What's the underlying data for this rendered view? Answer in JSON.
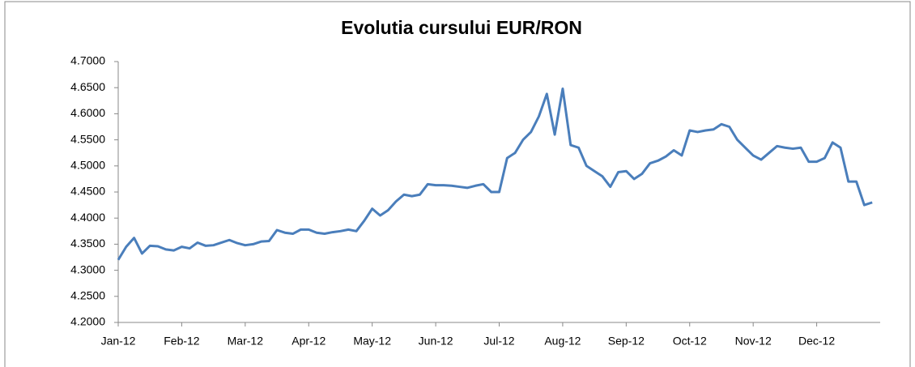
{
  "chart_data": {
    "type": "line",
    "title": "Evolutia cursului EUR/RON",
    "categories": [
      "Jan-12",
      null,
      null,
      null,
      null,
      null,
      null,
      null,
      "Feb-12",
      null,
      null,
      null,
      null,
      null,
      null,
      null,
      "Mar-12",
      null,
      null,
      null,
      null,
      null,
      null,
      null,
      "Apr-12",
      null,
      null,
      null,
      null,
      null,
      null,
      null,
      "May-12",
      null,
      null,
      null,
      null,
      null,
      null,
      null,
      "Jun-12",
      null,
      null,
      null,
      null,
      null,
      null,
      null,
      "Jul-12",
      null,
      null,
      null,
      null,
      null,
      null,
      null,
      "Aug-12",
      null,
      null,
      null,
      null,
      null,
      null,
      null,
      "Sep-12",
      null,
      null,
      null,
      null,
      null,
      null,
      null,
      "Oct-12",
      null,
      null,
      null,
      null,
      null,
      null,
      null,
      "Nov-12",
      null,
      null,
      null,
      null,
      null,
      null,
      null,
      "Dec-12",
      null,
      null,
      null,
      null,
      null,
      null,
      null
    ],
    "series": [
      {
        "name": "EUR/RON",
        "color": "#4a7ebb",
        "values": [
          4.32,
          4.345,
          4.362,
          4.332,
          4.347,
          4.346,
          4.34,
          4.338,
          4.345,
          4.342,
          4.353,
          4.347,
          4.348,
          4.353,
          4.358,
          4.352,
          4.348,
          4.35,
          4.355,
          4.356,
          4.377,
          4.372,
          4.37,
          4.378,
          4.378,
          4.372,
          4.37,
          4.373,
          4.375,
          4.378,
          4.375,
          4.395,
          4.418,
          4.405,
          4.415,
          4.432,
          4.445,
          4.442,
          4.445,
          4.465,
          4.463,
          4.463,
          4.462,
          4.46,
          4.458,
          4.462,
          4.465,
          4.45,
          4.45,
          4.515,
          4.525,
          4.55,
          4.565,
          4.595,
          4.638,
          4.56,
          4.648,
          4.54,
          4.535,
          4.5,
          4.49,
          4.48,
          4.46,
          4.488,
          4.49,
          4.475,
          4.485,
          4.505,
          4.51,
          4.518,
          4.53,
          4.52,
          4.568,
          4.565,
          4.568,
          4.57,
          4.58,
          4.575,
          4.55,
          4.535,
          4.52,
          4.512,
          4.525,
          4.538,
          4.535,
          4.533,
          4.535,
          4.508,
          4.508,
          4.515,
          4.545,
          4.535,
          4.47,
          4.47,
          4.425,
          4.43
        ]
      }
    ],
    "ylim": [
      4.2,
      4.7
    ],
    "yticks": [
      {
        "value": 4.2,
        "label": "4.2000"
      },
      {
        "value": 4.25,
        "label": "4.2500"
      },
      {
        "value": 4.3,
        "label": "4.3000"
      },
      {
        "value": 4.35,
        "label": "4.3500"
      },
      {
        "value": 4.4,
        "label": "4.4000"
      },
      {
        "value": 4.45,
        "label": "4.4500"
      },
      {
        "value": 4.5,
        "label": "4.5000"
      },
      {
        "value": 4.55,
        "label": "4.5500"
      },
      {
        "value": 4.6,
        "label": "4.6000"
      },
      {
        "value": 4.65,
        "label": "4.6500"
      },
      {
        "value": 4.7,
        "label": "4.7000"
      }
    ],
    "grid": false
  }
}
